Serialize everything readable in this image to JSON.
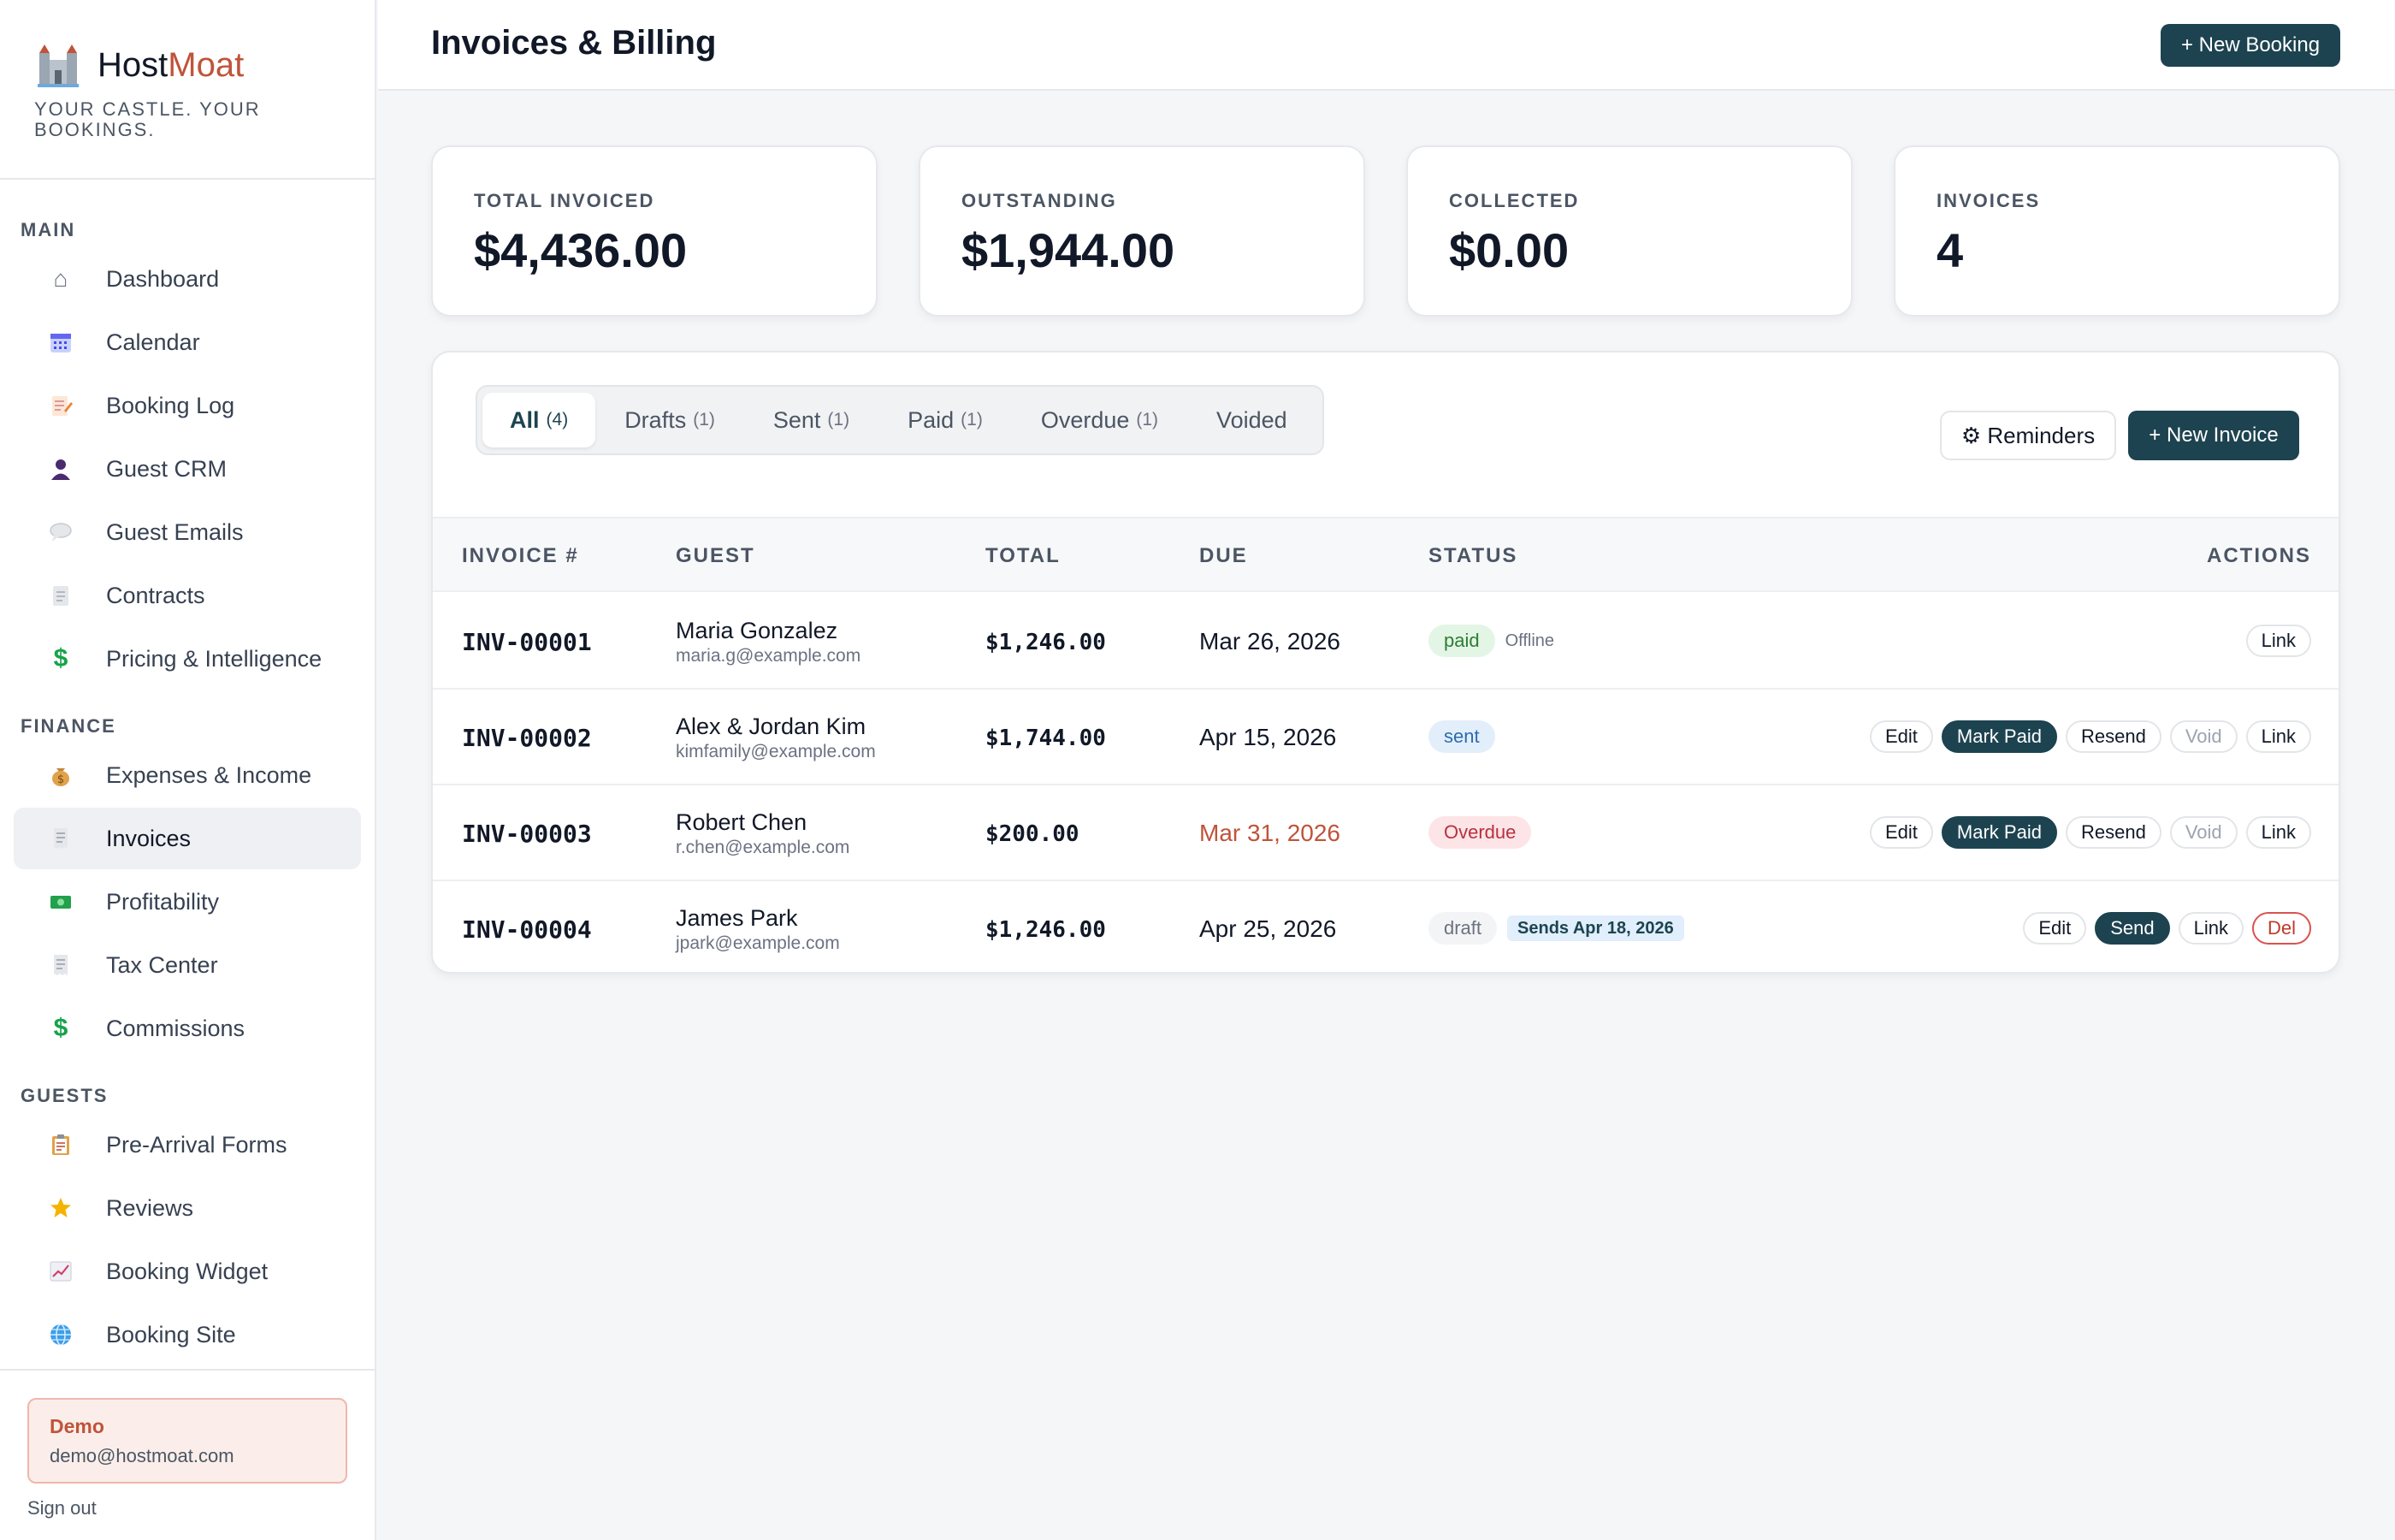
{
  "brand": {
    "name_a": "Host",
    "name_b": "Moat",
    "tagline": "YOUR CASTLE. YOUR BOOKINGS."
  },
  "sidebar": {
    "sections": [
      {
        "label": "MAIN",
        "items": [
          {
            "label": "Dashboard",
            "icon": "home-icon"
          },
          {
            "label": "Calendar",
            "icon": "calendar-icon"
          },
          {
            "label": "Booking Log",
            "icon": "memo-icon"
          },
          {
            "label": "Guest CRM",
            "icon": "person-icon"
          },
          {
            "label": "Guest Emails",
            "icon": "speech-bubble-icon"
          },
          {
            "label": "Contracts",
            "icon": "document-icon"
          },
          {
            "label": "Pricing & Intelligence",
            "icon": "dollar-icon"
          }
        ]
      },
      {
        "label": "FINANCE",
        "items": [
          {
            "label": "Expenses & Income",
            "icon": "money-bag-icon"
          },
          {
            "label": "Invoices",
            "icon": "receipt-icon",
            "active": true
          },
          {
            "label": "Profitability",
            "icon": "banknote-icon"
          },
          {
            "label": "Tax Center",
            "icon": "receipt-icon"
          },
          {
            "label": "Commissions",
            "icon": "dollar-icon"
          }
        ]
      },
      {
        "label": "GUESTS",
        "items": [
          {
            "label": "Pre-Arrival Forms",
            "icon": "clipboard-icon"
          },
          {
            "label": "Reviews",
            "icon": "star-icon"
          },
          {
            "label": "Booking Widget",
            "icon": "chart-icon"
          },
          {
            "label": "Booking Site",
            "icon": "globe-icon"
          }
        ]
      }
    ]
  },
  "user": {
    "name": "Demo",
    "email": "demo@hostmoat.com",
    "sign_out": "Sign out"
  },
  "header": {
    "title": "Invoices & Billing",
    "new_booking": "+ New Booking"
  },
  "stats": [
    {
      "label": "TOTAL INVOICED",
      "value": "$4,436.00"
    },
    {
      "label": "OUTSTANDING",
      "value": "$1,944.00"
    },
    {
      "label": "COLLECTED",
      "value": "$0.00"
    },
    {
      "label": "INVOICES",
      "value": "4"
    }
  ],
  "tabs": [
    {
      "label": "All",
      "count": "(4)",
      "active": true
    },
    {
      "label": "Drafts",
      "count": "(1)"
    },
    {
      "label": "Sent",
      "count": "(1)"
    },
    {
      "label": "Paid",
      "count": "(1)"
    },
    {
      "label": "Overdue",
      "count": "(1)"
    },
    {
      "label": "Voided",
      "count": ""
    }
  ],
  "toolbar": {
    "reminders": "⚙ Reminders",
    "new_invoice": "+ New Invoice"
  },
  "table": {
    "headers": {
      "invoice": "INVOICE #",
      "guest": "GUEST",
      "total": "TOTAL",
      "due": "DUE",
      "status": "STATUS",
      "actions": "ACTIONS"
    },
    "rows": [
      {
        "invoice": "INV-00001",
        "guest": "Maria Gonzalez",
        "email": "maria.g@example.com",
        "total": "$1,246.00",
        "due": "Mar 26, 2026",
        "due_overdue": false,
        "status": "paid",
        "status_type": "paid",
        "note": "Offline",
        "actions": [
          "Link"
        ]
      },
      {
        "invoice": "INV-00002",
        "guest": "Alex & Jordan Kim",
        "email": "kimfamily@example.com",
        "total": "$1,744.00",
        "due": "Apr 15, 2026",
        "due_overdue": false,
        "status": "sent",
        "status_type": "sent",
        "note": "",
        "actions": [
          "Edit",
          "Mark Paid",
          "Resend",
          "Void",
          "Link"
        ]
      },
      {
        "invoice": "INV-00003",
        "guest": "Robert Chen",
        "email": "r.chen@example.com",
        "total": "$200.00",
        "due": "Mar 31, 2026",
        "due_overdue": true,
        "status": "Overdue",
        "status_type": "overdue",
        "note": "",
        "actions": [
          "Edit",
          "Mark Paid",
          "Resend",
          "Void",
          "Link"
        ]
      },
      {
        "invoice": "INV-00004",
        "guest": "James Park",
        "email": "jpark@example.com",
        "total": "$1,246.00",
        "due": "Apr 25, 2026",
        "due_overdue": false,
        "status": "draft",
        "status_type": "draft",
        "note": "",
        "sends": "Sends Apr 18, 2026",
        "actions": [
          "Edit",
          "Send",
          "Link",
          "Del"
        ]
      }
    ]
  }
}
